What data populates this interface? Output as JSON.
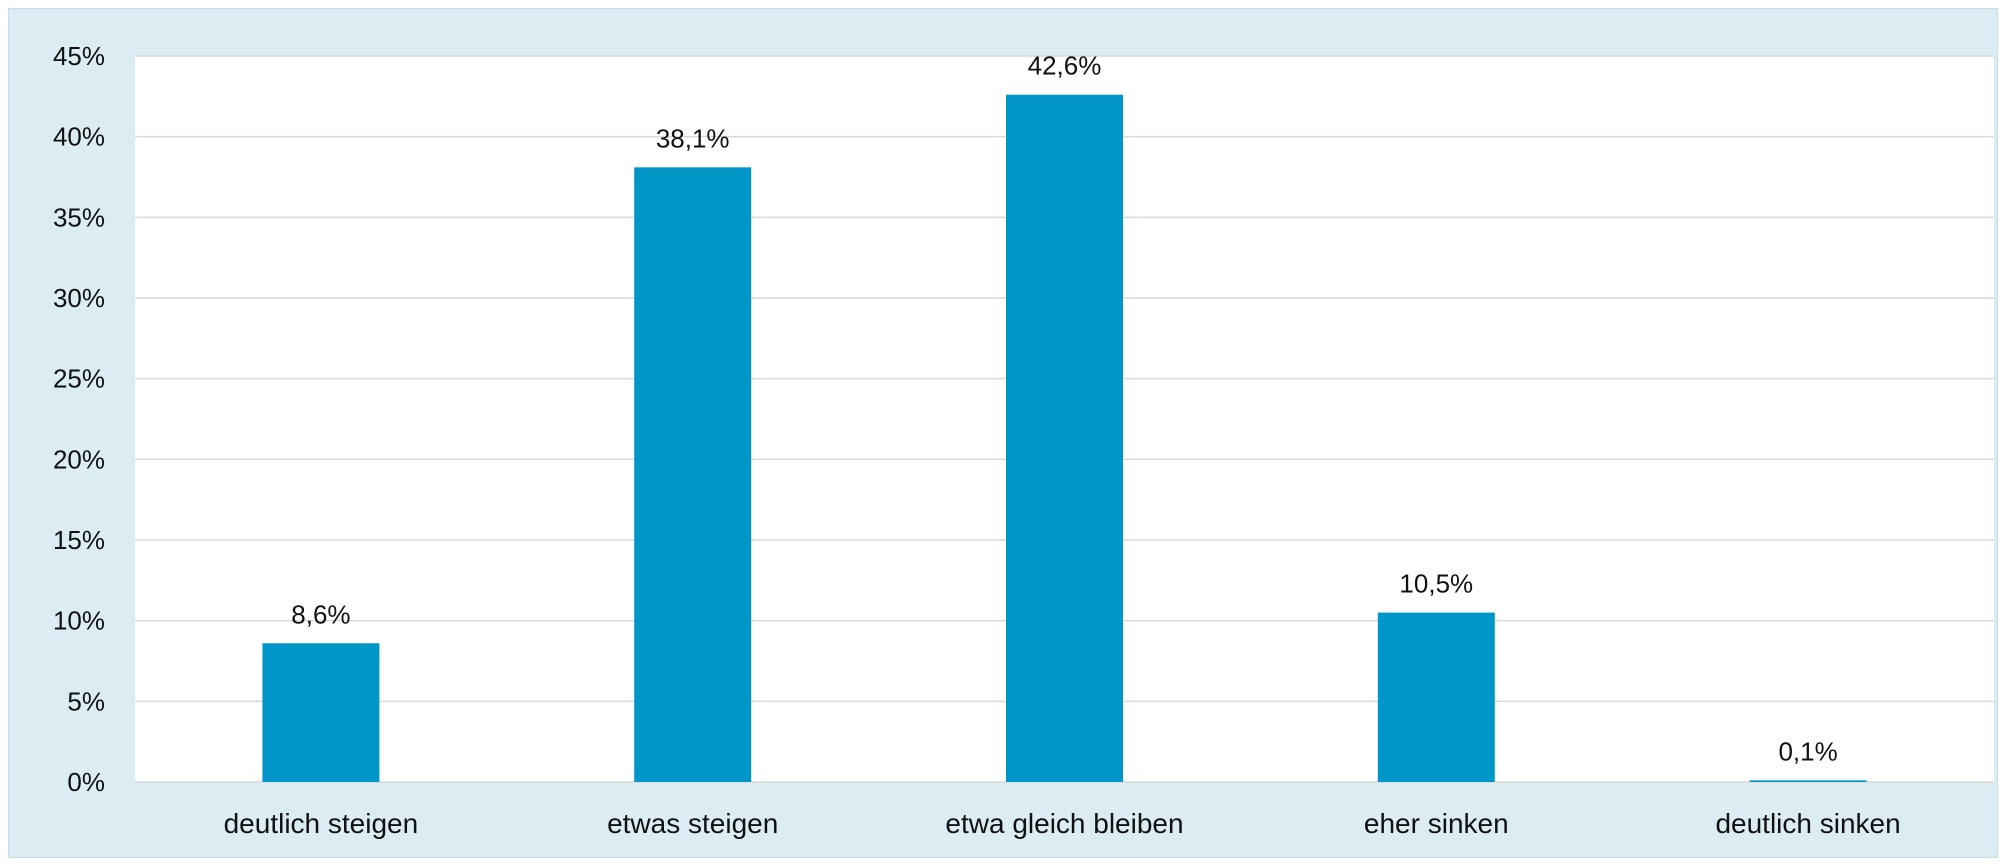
{
  "chart_data": {
    "type": "bar",
    "categories": [
      "deutlich steigen",
      "etwas steigen",
      "etwa gleich bleiben",
      "eher sinken",
      "deutlich sinken"
    ],
    "values": [
      8.6,
      38.1,
      42.6,
      10.5,
      0.1
    ],
    "value_labels": [
      "8,6%",
      "38,1%",
      "42,6%",
      "10,5%",
      "0,1%"
    ],
    "ylim": [
      0,
      45
    ],
    "ytick_values": [
      0,
      5,
      10,
      15,
      20,
      25,
      30,
      35,
      40,
      45
    ],
    "ytick_labels": [
      "0%",
      "5%",
      "10%",
      "15%",
      "20%",
      "25%",
      "30%",
      "35%",
      "40%",
      "45%"
    ],
    "grid": true,
    "colors": {
      "bar": "#0096c8",
      "frame_background": "#dbecf3",
      "plot_background": "#ffffff",
      "grid": "#d9d9d9"
    }
  }
}
